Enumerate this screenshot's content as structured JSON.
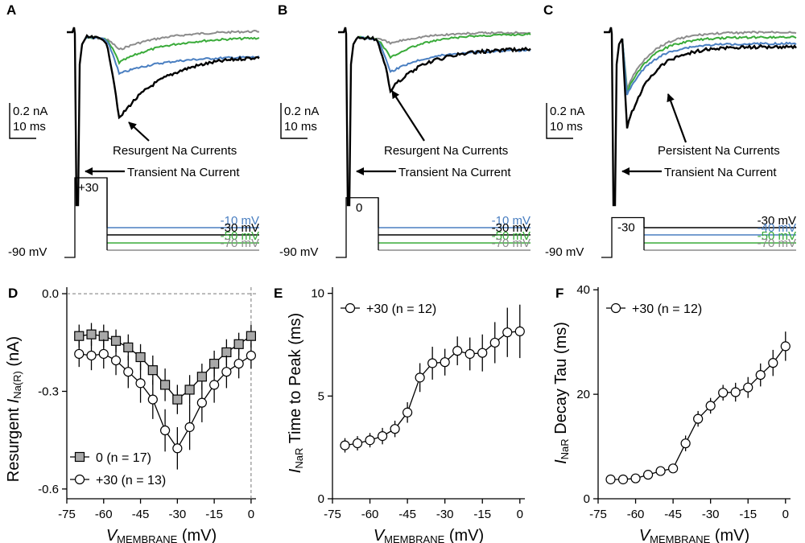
{
  "colors": {
    "c_m10": "#4a7fc1",
    "c_m30": "#000000",
    "c_m50": "#3aab3a",
    "c_m70": "#8c8c8c",
    "axis": "#000000"
  },
  "top": {
    "panels": [
      {
        "letter": "A",
        "scale_current": "0.2 nA",
        "scale_time": "10 ms",
        "annot_upper": "Resurgent  Na Currents",
        "annot_lower": "Transient  Na Current",
        "hold_label": "-90 mV",
        "step_label": "+30",
        "step_level": 30,
        "legend": [
          "-10 mV",
          "-30 mV",
          "-50 mV",
          "-70 mV"
        ],
        "legend_colors": [
          "c_m10",
          "c_m30",
          "c_m50",
          "c_m70"
        ]
      },
      {
        "letter": "B",
        "scale_current": "0.2 nA",
        "scale_time": "10 ms",
        "annot_upper": "Resurgent  Na Currents",
        "annot_lower": "Transient  Na Current",
        "hold_label": "-90 mV",
        "step_label": "0",
        "step_level": 0,
        "legend": [
          "-10 mV",
          "-30 mV",
          "-50 mV",
          "-70 mV"
        ],
        "legend_colors": [
          "c_m10",
          "c_m30",
          "c_m50",
          "c_m70"
        ]
      },
      {
        "letter": "C",
        "scale_current": "0.2 nA",
        "scale_time": "10 ms",
        "annot_upper": "Persistent  Na  Currents",
        "annot_lower": "Transient  Na Current",
        "hold_label": "-90 mV",
        "step_label": "-30",
        "step_level": -30,
        "legend": [
          "-30 mV",
          "-40 mV",
          "-50 mV",
          "-70 mV"
        ],
        "legend_colors": [
          "c_m30",
          "c_m10",
          "c_m50",
          "c_m70"
        ]
      }
    ]
  },
  "chart_data": [
    {
      "panel": "D",
      "type": "line",
      "x_prefix": "V",
      "x_subscript": "MEMBRANE",
      "x_unit": "(mV)",
      "ylabel_prefix": "Resurgent ",
      "ylabel_italic": "I",
      "ylabel_sub": "Na(R)",
      "ylabel_unit": " (nA)",
      "xlim": [
        -75,
        2
      ],
      "ylim": [
        -0.63,
        0.02
      ],
      "xticks": [
        -75,
        -60,
        -45,
        -30,
        -15,
        0
      ],
      "xticklabels": [
        "-75",
        "-60",
        "-45",
        "-30",
        "-15",
        "0"
      ],
      "yticks": [
        0,
        -0.3,
        -0.6
      ],
      "yticklabels": [
        "0.0",
        "-0.3",
        "-0.6"
      ],
      "reference_lines": {
        "y": 0,
        "x": 0
      },
      "series": [
        {
          "name": "0 (n = 17)",
          "marker": "square",
          "x": [
            -70,
            -65,
            -60,
            -55,
            -50,
            -45,
            -40,
            -35,
            -30,
            -25,
            -20,
            -15,
            -10,
            -5,
            0
          ],
          "y": [
            -0.13,
            -0.125,
            -0.13,
            -0.145,
            -0.165,
            -0.195,
            -0.235,
            -0.28,
            -0.325,
            -0.295,
            -0.255,
            -0.215,
            -0.18,
            -0.155,
            -0.13
          ],
          "err": [
            0.035,
            0.035,
            0.035,
            0.035,
            0.04,
            0.04,
            0.045,
            0.05,
            0.045,
            0.045,
            0.04,
            0.04,
            0.04,
            0.035,
            0.035
          ]
        },
        {
          "name": "+30 (n = 13)",
          "marker": "circle",
          "x": [
            -70,
            -65,
            -60,
            -55,
            -50,
            -45,
            -40,
            -35,
            -30,
            -25,
            -20,
            -15,
            -10,
            -5,
            0
          ],
          "y": [
            -0.185,
            -0.19,
            -0.185,
            -0.205,
            -0.24,
            -0.275,
            -0.325,
            -0.42,
            -0.475,
            -0.41,
            -0.335,
            -0.28,
            -0.24,
            -0.215,
            -0.19
          ],
          "err": [
            0.04,
            0.045,
            0.045,
            0.045,
            0.05,
            0.06,
            0.06,
            0.065,
            0.065,
            0.07,
            0.06,
            0.055,
            0.05,
            0.045,
            0.04
          ]
        }
      ]
    },
    {
      "panel": "E",
      "type": "line",
      "x_prefix": "V",
      "x_subscript": "MEMBRANE",
      "x_unit": "(mV)",
      "ylabel_prefix": "",
      "ylabel_italic": "I",
      "ylabel_sub": "NaR",
      "ylabel_unit": " Time to Peak (ms)",
      "xlim": [
        -75,
        2
      ],
      "ylim": [
        0,
        10.3
      ],
      "xticks": [
        -75,
        -60,
        -45,
        -30,
        -15,
        0
      ],
      "xticklabels": [
        "-75",
        "-60",
        "-45",
        "-30",
        "-15",
        "0"
      ],
      "yticks": [
        0,
        5,
        10
      ],
      "yticklabels": [
        "0",
        "5",
        "10"
      ],
      "series": [
        {
          "name": "+30 (n = 12)",
          "marker": "circle",
          "x": [
            -70,
            -65,
            -60,
            -55,
            -50,
            -45,
            -40,
            -35,
            -30,
            -25,
            -20,
            -15,
            -10,
            -5,
            0
          ],
          "y": [
            2.6,
            2.7,
            2.85,
            3.05,
            3.4,
            4.2,
            5.9,
            6.6,
            6.65,
            7.2,
            7.05,
            7.1,
            7.6,
            8.1,
            8.15
          ],
          "err": [
            0.35,
            0.35,
            0.35,
            0.4,
            0.4,
            0.5,
            0.7,
            0.8,
            0.65,
            0.7,
            0.8,
            0.9,
            1.0,
            1.2,
            1.3
          ]
        }
      ]
    },
    {
      "panel": "F",
      "type": "line",
      "x_prefix": "V",
      "x_subscript": "MEMBRANE",
      "x_unit": "(mV)",
      "ylabel_prefix": "",
      "ylabel_italic": "I",
      "ylabel_sub": "NaR",
      "ylabel_unit": " Decay Tau (ms)",
      "xlim": [
        -75,
        2
      ],
      "ylim": [
        0,
        40.5
      ],
      "xticks": [
        -75,
        -60,
        -45,
        -30,
        -15,
        0
      ],
      "xticklabels": [
        "-75",
        "-60",
        "-45",
        "-30",
        "-15",
        "0"
      ],
      "yticks": [
        0,
        20,
        40
      ],
      "yticklabels": [
        "0",
        "20",
        "40"
      ],
      "series": [
        {
          "name": "+30 (n = 12)",
          "marker": "circle",
          "x": [
            -70,
            -65,
            -60,
            -55,
            -50,
            -45,
            -40,
            -35,
            -30,
            -25,
            -20,
            -15,
            -10,
            -5,
            0
          ],
          "y": [
            3.7,
            3.7,
            3.9,
            4.6,
            5.3,
            5.8,
            10.6,
            15.3,
            17.8,
            20.3,
            20.4,
            21.3,
            23.7,
            26.0,
            29.2
          ],
          "err": [
            0.5,
            0.5,
            0.5,
            0.6,
            0.6,
            0.8,
            1.5,
            1.5,
            1.5,
            1.5,
            1.8,
            2.0,
            2.2,
            2.5,
            2.8
          ]
        }
      ]
    }
  ]
}
